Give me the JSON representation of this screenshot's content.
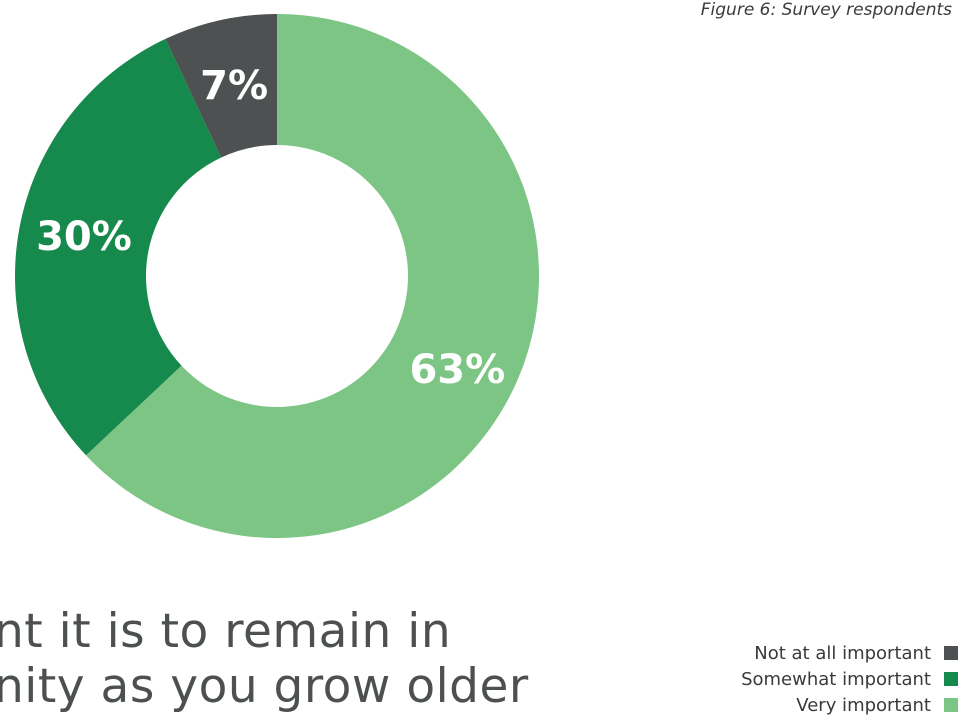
{
  "caption": "Figure 6: Survey respondents",
  "heading": {
    "line1": "nt it is to remain in",
    "line2": "nity as you grow older"
  },
  "chart_data": {
    "type": "pie",
    "variant": "donut",
    "title": "",
    "slices": [
      {
        "name": "Very important",
        "value": 63,
        "label": "63%",
        "color": "#7dc584"
      },
      {
        "name": "Somewhat important",
        "value": 30,
        "label": "30%",
        "color": "#16894c"
      },
      {
        "name": "Not at all important",
        "value": 7,
        "label": "7%",
        "color": "#4e5152"
      }
    ],
    "legend": {
      "placement": "bottom-right",
      "items": [
        {
          "label": "Not at all important",
          "color": "#4e5152"
        },
        {
          "label": "Somewhat important",
          "color": "#16894c"
        },
        {
          "label": "Very important",
          "color": "#7dc584"
        }
      ]
    }
  }
}
